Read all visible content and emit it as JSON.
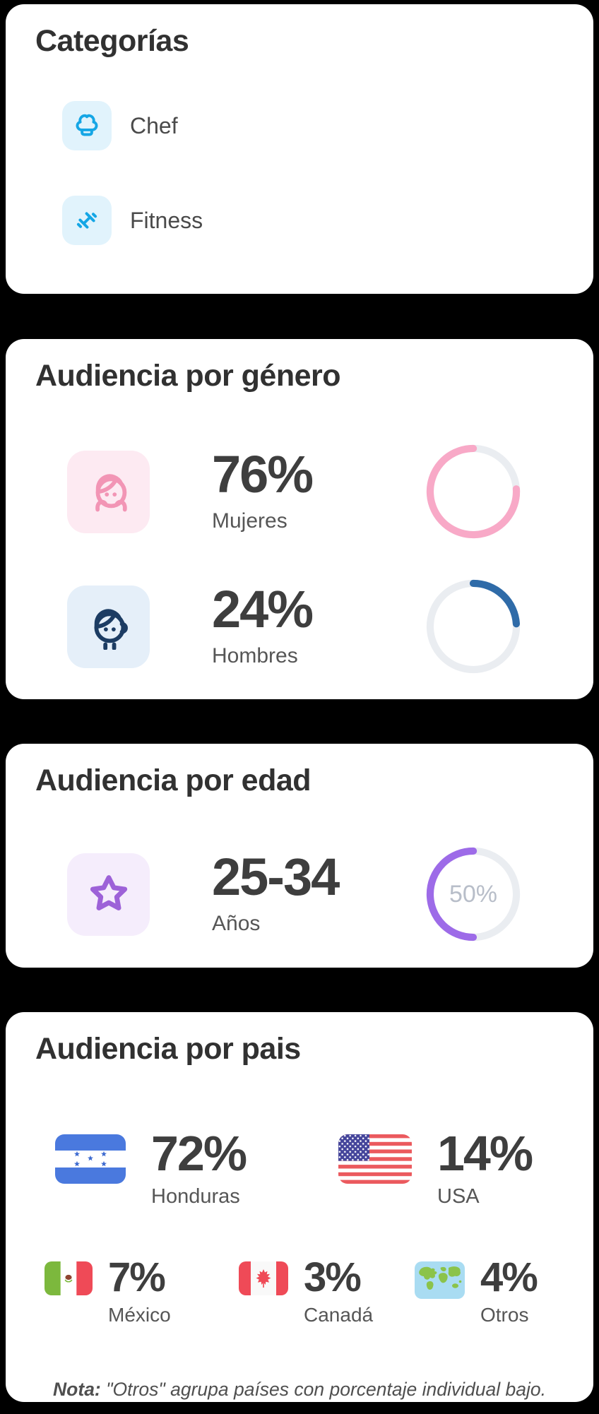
{
  "colors": {
    "page_background": "#000000",
    "card_background": "#FFFFFF",
    "title_text": "#313131",
    "value_text": "#3E3E3E",
    "label_text": "#565656",
    "category_icon_blue": "#15A6E5",
    "category_tile_blue": "#E1F3FC",
    "women_icon_pink": "#F295B5",
    "women_tile_pink": "#FDEAF2",
    "men_icon_navy": "#1C3C63",
    "men_tile_blue": "#E5EFF9",
    "age_icon_purple": "#9D62D8",
    "age_tile_purple": "#F5EDFC",
    "ring_track": "#EAEDF1",
    "ring_center_label": "#B8BEC9"
  },
  "categories_card": {
    "title": "Categorías",
    "items": [
      {
        "label": "Chef",
        "icon": "chef-hat-icon"
      },
      {
        "label": "Fitness",
        "icon": "dumbbell-icon"
      }
    ]
  },
  "gender_card": {
    "title": "Audiencia por género",
    "rows": [
      {
        "value": "76%",
        "label": "Mujeres",
        "percent": 76,
        "ring_color": "#F8A9C7"
      },
      {
        "value": "24%",
        "label": "Hombres",
        "percent": 24,
        "ring_color": "#2F6BA8"
      }
    ]
  },
  "age_card": {
    "title": "Audiencia por edad",
    "value": "25-34",
    "label": "Años",
    "percent": 50,
    "ring_label": "50%",
    "ring_color": "#9D6BE8"
  },
  "country_card": {
    "title": "Audiencia por pais",
    "row1": [
      {
        "value": "72%",
        "label": "Honduras",
        "flag": "honduras-flag"
      },
      {
        "value": "14%",
        "label": "USA",
        "flag": "usa-flag"
      }
    ],
    "row2": [
      {
        "value": "7%",
        "label": "México",
        "flag": "mexico-flag"
      },
      {
        "value": "3%",
        "label": "Canadá",
        "flag": "canada-flag"
      },
      {
        "value": "4%",
        "label": "Otros",
        "flag": "world-map"
      }
    ],
    "note_bold": "Nota:",
    "note_rest": " \"Otros\" agrupa países con porcentaje individual bajo."
  },
  "chart_data": [
    {
      "type": "pie",
      "title": "Audiencia por género",
      "labels": [
        "Mujeres",
        "Hombres"
      ],
      "values": [
        76,
        24
      ],
      "unit": "%",
      "colors": [
        "#F8A9C7",
        "#2F6BA8"
      ]
    },
    {
      "type": "pie",
      "title": "Audiencia por edad",
      "labels": [
        "25-34 Años"
      ],
      "values": [
        50
      ],
      "unit": "%",
      "colors": [
        "#9D6BE8"
      ]
    },
    {
      "type": "pie",
      "title": "Audiencia por pais",
      "labels": [
        "Honduras",
        "USA",
        "México",
        "Canadá",
        "Otros"
      ],
      "values": [
        72,
        14,
        7,
        3,
        4
      ],
      "unit": "%"
    }
  ]
}
